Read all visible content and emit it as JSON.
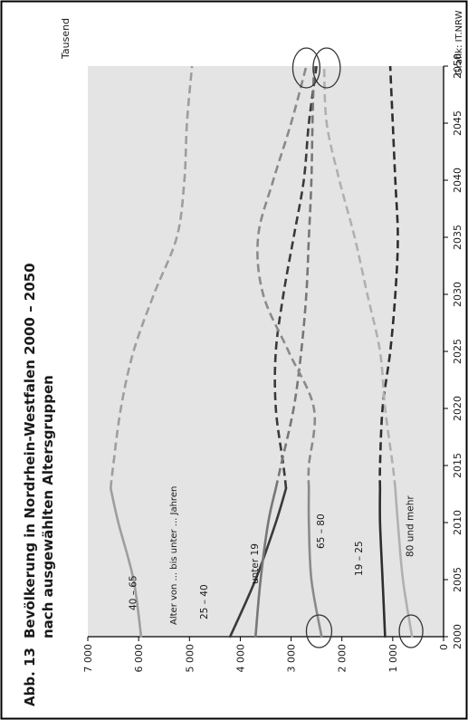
{
  "figure": {
    "number": "Abb. 13",
    "title": "Bevölkerung in Nordrhein-Westfalen 2000 – 2050",
    "subtitle": "nach ausgewählten Altersgruppen",
    "credit": "Grafik: IT.NRW",
    "group_caption": "Alter von ... bis unter ... Jahren"
  },
  "chart_data": {
    "type": "line",
    "unit_label": "Tausend",
    "x_ticks": [
      2000,
      2005,
      2010,
      2015,
      2020,
      2025,
      2030,
      2035,
      2040,
      2045,
      2050
    ],
    "y_ticks": [
      0,
      1000,
      2000,
      3000,
      4000,
      5000,
      6000,
      7000
    ],
    "y_tick_labels": [
      "0",
      "1 000",
      "2 000",
      "3 000",
      "4 000",
      "5 000",
      "6 000",
      "7 000"
    ],
    "xlim": [
      2000,
      2050
    ],
    "ylim": [
      0,
      7000
    ],
    "grid": false,
    "projection_start": 2013,
    "x": [
      2000,
      2005,
      2010,
      2013,
      2015,
      2020,
      2025,
      2030,
      2035,
      2040,
      2045,
      2050
    ],
    "series": [
      {
        "name": "40 – 65",
        "color": "#9e9e9e",
        "values": [
          5950,
          6100,
          6400,
          6550,
          6500,
          6350,
          6100,
          5700,
          5250,
          5100,
          5050,
          4950
        ]
      },
      {
        "name": "25 – 40",
        "color": "#3a3a3a",
        "values": [
          4200,
          3700,
          3300,
          3100,
          3150,
          3300,
          3300,
          3150,
          2950,
          2750,
          2650,
          2500
        ]
      },
      {
        "name": "unter 19",
        "color": "#777777",
        "values": [
          3700,
          3600,
          3450,
          3300,
          3200,
          2950,
          2800,
          2700,
          2650,
          2600,
          2580,
          2550
        ]
      },
      {
        "name": "65 – 80",
        "color": "#8a8a8a",
        "values": [
          2400,
          2600,
          2650,
          2650,
          2650,
          2550,
          3050,
          3550,
          3650,
          3350,
          3000,
          2700
        ]
      },
      {
        "name": "19 – 25",
        "color": "#2e2e2e",
        "values": [
          1150,
          1200,
          1250,
          1250,
          1250,
          1200,
          1050,
          950,
          900,
          950,
          1000,
          1050
        ]
      },
      {
        "name": "80 und mehr",
        "color": "#b0b0b0",
        "values": [
          620,
          800,
          900,
          950,
          1000,
          1150,
          1250,
          1500,
          1750,
          2050,
          2300,
          2350
        ]
      }
    ]
  }
}
